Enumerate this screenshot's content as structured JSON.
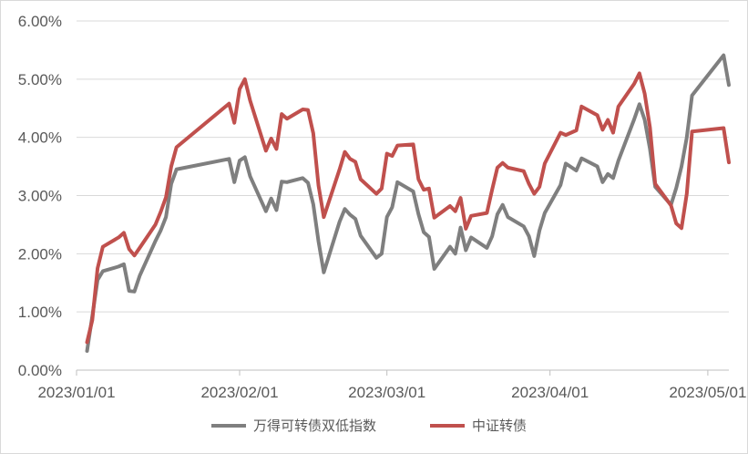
{
  "chart_data": {
    "type": "line",
    "title": "",
    "xlabel": "",
    "ylabel": "",
    "ylim": [
      0,
      6
    ],
    "y_tick_labels": [
      "0.00%",
      "1.00%",
      "2.00%",
      "3.00%",
      "4.00%",
      "5.00%",
      "6.00%"
    ],
    "x_tick_labels": [
      "2023/01/01",
      "2023/02/01",
      "2023/03/01",
      "2023/04/01",
      "2023/05/01"
    ],
    "x_range": [
      "2023-01-01",
      "2023-05-05"
    ],
    "grid": "horizontal",
    "legend_position": "bottom",
    "series": [
      {
        "name": "万得可转债双低指数",
        "color": "#7f7f7f",
        "points": [
          [
            "2023-01-03",
            0.33
          ],
          [
            "2023-01-04",
            0.93
          ],
          [
            "2023-01-05",
            1.55
          ],
          [
            "2023-01-06",
            1.7
          ],
          [
            "2023-01-09",
            1.78
          ],
          [
            "2023-01-10",
            1.82
          ],
          [
            "2023-01-11",
            1.36
          ],
          [
            "2023-01-12",
            1.35
          ],
          [
            "2023-01-13",
            1.62
          ],
          [
            "2023-01-16",
            2.22
          ],
          [
            "2023-01-17",
            2.4
          ],
          [
            "2023-01-18",
            2.63
          ],
          [
            "2023-01-19",
            3.2
          ],
          [
            "2023-01-20",
            3.45
          ],
          [
            "2023-01-30",
            3.63
          ],
          [
            "2023-01-31",
            3.23
          ],
          [
            "2023-02-01",
            3.6
          ],
          [
            "2023-02-02",
            3.66
          ],
          [
            "2023-02-03",
            3.33
          ],
          [
            "2023-02-06",
            2.73
          ],
          [
            "2023-02-07",
            2.95
          ],
          [
            "2023-02-08",
            2.75
          ],
          [
            "2023-02-09",
            3.24
          ],
          [
            "2023-02-10",
            3.23
          ],
          [
            "2023-02-13",
            3.3
          ],
          [
            "2023-02-14",
            3.22
          ],
          [
            "2023-02-15",
            2.85
          ],
          [
            "2023-02-16",
            2.21
          ],
          [
            "2023-02-17",
            1.68
          ],
          [
            "2023-02-20",
            2.55
          ],
          [
            "2023-02-21",
            2.77
          ],
          [
            "2023-02-22",
            2.67
          ],
          [
            "2023-02-23",
            2.6
          ],
          [
            "2023-02-24",
            2.31
          ],
          [
            "2023-02-27",
            1.93
          ],
          [
            "2023-02-28",
            2.0
          ],
          [
            "2023-03-01",
            2.63
          ],
          [
            "2023-03-02",
            2.8
          ],
          [
            "2023-03-03",
            3.23
          ],
          [
            "2023-03-06",
            3.07
          ],
          [
            "2023-03-07",
            2.68
          ],
          [
            "2023-03-08",
            2.37
          ],
          [
            "2023-03-09",
            2.29
          ],
          [
            "2023-03-10",
            1.74
          ],
          [
            "2023-03-13",
            2.12
          ],
          [
            "2023-03-14",
            2.0
          ],
          [
            "2023-03-15",
            2.45
          ],
          [
            "2023-03-16",
            2.06
          ],
          [
            "2023-03-17",
            2.28
          ],
          [
            "2023-03-20",
            2.1
          ],
          [
            "2023-03-21",
            2.3
          ],
          [
            "2023-03-22",
            2.68
          ],
          [
            "2023-03-23",
            2.84
          ],
          [
            "2023-03-24",
            2.63
          ],
          [
            "2023-03-27",
            2.47
          ],
          [
            "2023-03-28",
            2.3
          ],
          [
            "2023-03-29",
            1.96
          ],
          [
            "2023-03-30",
            2.4
          ],
          [
            "2023-03-31",
            2.7
          ],
          [
            "2023-04-03",
            3.18
          ],
          [
            "2023-04-04",
            3.55
          ],
          [
            "2023-04-06",
            3.43
          ],
          [
            "2023-04-07",
            3.64
          ],
          [
            "2023-04-10",
            3.5
          ],
          [
            "2023-04-11",
            3.23
          ],
          [
            "2023-04-12",
            3.37
          ],
          [
            "2023-04-13",
            3.3
          ],
          [
            "2023-04-14",
            3.6
          ],
          [
            "2023-04-17",
            4.31
          ],
          [
            "2023-04-18",
            4.57
          ],
          [
            "2023-04-19",
            4.3
          ],
          [
            "2023-04-20",
            3.8
          ],
          [
            "2023-04-21",
            3.15
          ],
          [
            "2023-04-24",
            2.84
          ],
          [
            "2023-04-25",
            3.13
          ],
          [
            "2023-04-26",
            3.5
          ],
          [
            "2023-04-27",
            4.0
          ],
          [
            "2023-04-28",
            4.72
          ],
          [
            "2023-05-04",
            5.41
          ],
          [
            "2023-05-05",
            4.9
          ]
        ]
      },
      {
        "name": "中证转债",
        "color": "#c0504d",
        "points": [
          [
            "2023-01-03",
            0.48
          ],
          [
            "2023-01-04",
            0.86
          ],
          [
            "2023-01-05",
            1.75
          ],
          [
            "2023-01-06",
            2.12
          ],
          [
            "2023-01-09",
            2.28
          ],
          [
            "2023-01-10",
            2.36
          ],
          [
            "2023-01-11",
            2.08
          ],
          [
            "2023-01-12",
            1.97
          ],
          [
            "2023-01-13",
            2.1
          ],
          [
            "2023-01-16",
            2.5
          ],
          [
            "2023-01-17",
            2.72
          ],
          [
            "2023-01-18",
            2.97
          ],
          [
            "2023-01-19",
            3.5
          ],
          [
            "2023-01-20",
            3.83
          ],
          [
            "2023-01-30",
            4.58
          ],
          [
            "2023-01-31",
            4.25
          ],
          [
            "2023-02-01",
            4.83
          ],
          [
            "2023-02-02",
            5.0
          ],
          [
            "2023-02-03",
            4.63
          ],
          [
            "2023-02-06",
            3.77
          ],
          [
            "2023-02-07",
            3.98
          ],
          [
            "2023-02-08",
            3.8
          ],
          [
            "2023-02-09",
            4.4
          ],
          [
            "2023-02-10",
            4.32
          ],
          [
            "2023-02-13",
            4.48
          ],
          [
            "2023-02-14",
            4.47
          ],
          [
            "2023-02-15",
            4.07
          ],
          [
            "2023-02-16",
            3.17
          ],
          [
            "2023-02-17",
            2.63
          ],
          [
            "2023-02-20",
            3.45
          ],
          [
            "2023-02-21",
            3.75
          ],
          [
            "2023-02-22",
            3.63
          ],
          [
            "2023-02-23",
            3.58
          ],
          [
            "2023-02-24",
            3.28
          ],
          [
            "2023-02-27",
            3.03
          ],
          [
            "2023-02-28",
            3.12
          ],
          [
            "2023-03-01",
            3.72
          ],
          [
            "2023-03-02",
            3.68
          ],
          [
            "2023-03-03",
            3.86
          ],
          [
            "2023-03-06",
            3.88
          ],
          [
            "2023-03-07",
            3.28
          ],
          [
            "2023-03-08",
            3.1
          ],
          [
            "2023-03-09",
            3.12
          ],
          [
            "2023-03-10",
            2.62
          ],
          [
            "2023-03-13",
            2.82
          ],
          [
            "2023-03-14",
            2.73
          ],
          [
            "2023-03-15",
            2.96
          ],
          [
            "2023-03-16",
            2.43
          ],
          [
            "2023-03-17",
            2.65
          ],
          [
            "2023-03-20",
            2.7
          ],
          [
            "2023-03-21",
            3.1
          ],
          [
            "2023-03-22",
            3.48
          ],
          [
            "2023-03-23",
            3.56
          ],
          [
            "2023-03-24",
            3.48
          ],
          [
            "2023-03-27",
            3.42
          ],
          [
            "2023-03-28",
            3.2
          ],
          [
            "2023-03-29",
            3.03
          ],
          [
            "2023-03-30",
            3.15
          ],
          [
            "2023-03-31",
            3.55
          ],
          [
            "2023-04-03",
            4.08
          ],
          [
            "2023-04-04",
            4.04
          ],
          [
            "2023-04-06",
            4.12
          ],
          [
            "2023-04-07",
            4.53
          ],
          [
            "2023-04-10",
            4.38
          ],
          [
            "2023-04-11",
            4.13
          ],
          [
            "2023-04-12",
            4.3
          ],
          [
            "2023-04-13",
            4.08
          ],
          [
            "2023-04-14",
            4.53
          ],
          [
            "2023-04-17",
            4.92
          ],
          [
            "2023-04-18",
            5.1
          ],
          [
            "2023-04-19",
            4.75
          ],
          [
            "2023-04-20",
            4.17
          ],
          [
            "2023-04-21",
            3.2
          ],
          [
            "2023-04-24",
            2.83
          ],
          [
            "2023-04-25",
            2.52
          ],
          [
            "2023-04-26",
            2.44
          ],
          [
            "2023-04-27",
            3.03
          ],
          [
            "2023-04-28",
            4.1
          ],
          [
            "2023-05-04",
            4.16
          ],
          [
            "2023-05-05",
            3.57
          ]
        ]
      }
    ]
  }
}
